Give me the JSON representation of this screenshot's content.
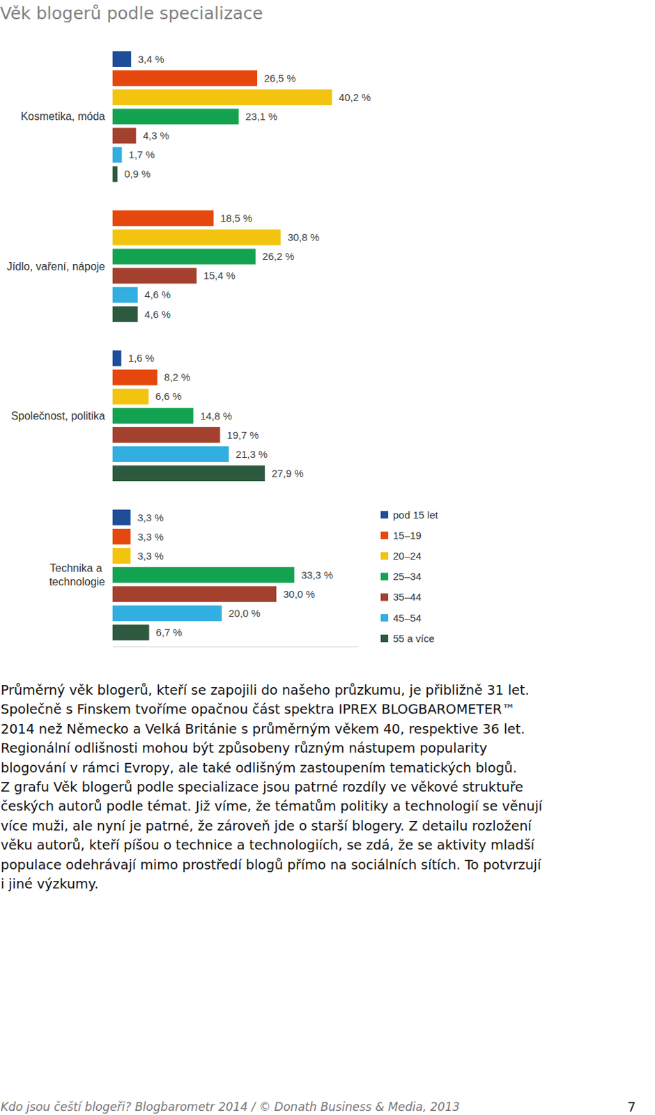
{
  "chart_data": {
    "type": "bar",
    "title": "Věk blogerů podle specializace",
    "orientation": "horizontal",
    "data_labels": true,
    "tick_labels": false,
    "legend": "right",
    "categories": [
      "Kosmetika, móda",
      "Jídlo, vaření, nápoje",
      "Společnost, politika",
      "Technika a technologie"
    ],
    "xlim": [
      0,
      45
    ],
    "series": [
      {
        "name": "pod 15 let",
        "color": "#1f4e99",
        "values": [
          3.4,
          null,
          1.6,
          3.3
        ],
        "value_labels": [
          "3,4 %",
          null,
          "1,6 %",
          "3,3 %"
        ]
      },
      {
        "name": "15–19",
        "color": "#e5470c",
        "values": [
          26.5,
          18.5,
          8.2,
          3.3
        ],
        "value_labels": [
          "26,5 %",
          "18,5 %",
          "8,2 %",
          "3,3 %"
        ]
      },
      {
        "name": "20–24",
        "color": "#f2c40f",
        "values": [
          40.2,
          30.8,
          6.6,
          3.3
        ],
        "value_labels": [
          "40,2 %",
          "30,8 %",
          "6,6 %",
          "3,3 %"
        ]
      },
      {
        "name": "25–34",
        "color": "#13a350",
        "values": [
          23.1,
          26.2,
          14.8,
          33.3
        ],
        "value_labels": [
          "23,1 %",
          "26,2 %",
          "14,8 %",
          "33,3 %"
        ]
      },
      {
        "name": "35–44",
        "color": "#a4412e",
        "values": [
          4.3,
          15.4,
          19.7,
          30.0
        ],
        "value_labels": [
          "4,3 %",
          "15,4 %",
          "19,7 %",
          "30,0 %"
        ]
      },
      {
        "name": "45–54",
        "color": "#33aee0",
        "values": [
          1.7,
          4.6,
          21.3,
          20.0
        ],
        "value_labels": [
          "1,7 %",
          "4,6 %",
          "21,3 %",
          "20,0 %"
        ]
      },
      {
        "name": "55 a více",
        "color": "#2d5a3f",
        "values": [
          0.9,
          4.6,
          27.9,
          6.7
        ],
        "value_labels": [
          "0,9 %",
          "4,6 %",
          "27,9 %",
          "6,7 %"
        ]
      }
    ]
  },
  "paragraph_lines": [
    "Průměrný věk blogerů, kteří se zapojili do našeho průzkumu, je přibližně 31 let.",
    "Společně s Finskem tvoříme opačnou část spektra IPREX BLOGBAROMETER™",
    "2014 než Německo a Velká Británie s průměrným věkem 40, respektive 36 let.",
    "Regionální odlišnosti mohou být způsobeny různým nástupem popularity",
    "blogování v rámci Evropy, ale také odlišným zastoupením tematických blogů.",
    "Z grafu Věk blogerů podle specializace jsou patrné rozdíly ve věkové struktuře",
    "českých autorů podle témat. Již víme, že tématům politiky a technologií se věnují",
    "více muži, ale nyní je patrné, že zároveň jde o starší blogery. Z detailu rozložení",
    "věku autorů, kteří píšou o technice a technologiích, se zdá, že se aktivity mladší",
    "populace odehrávají mimo prostředí blogů přímo na sociálních sítích. To potvrzují",
    "i jiné výzkumy."
  ],
  "footer": {
    "source": "Kdo jsou čeští blogeři? Blogbarometr 2014 / © Donath Business & Media, 2013",
    "page": "7"
  }
}
